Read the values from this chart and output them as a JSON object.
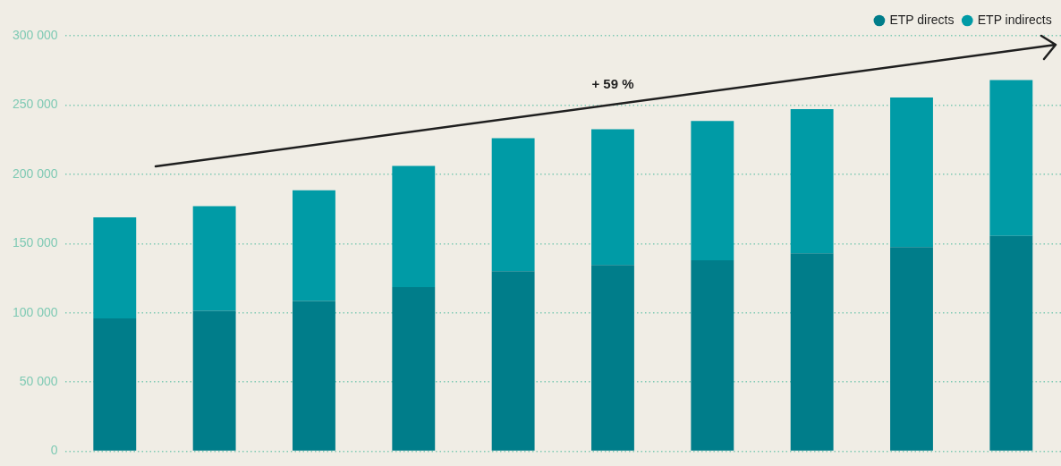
{
  "chart_data": {
    "type": "bar",
    "stacked": true,
    "categories": [
      null,
      null,
      null,
      null,
      null,
      null,
      null,
      null,
      null,
      null
    ],
    "series": [
      {
        "name": "ETP directs",
        "color": "#007d8a",
        "values": [
          96000,
          101500,
          108500,
          118500,
          130000,
          134500,
          138000,
          143000,
          147500,
          155500
        ]
      },
      {
        "name": "ETP indirects",
        "color": "#009ba6",
        "values": [
          73000,
          75500,
          80000,
          87500,
          96000,
          98000,
          100500,
          104000,
          108000,
          112500
        ]
      }
    ],
    "ylim": [
      0,
      300000
    ],
    "yticks": [
      {
        "value": 0,
        "label": "0"
      },
      {
        "value": 50000,
        "label": "50 000"
      },
      {
        "value": 100000,
        "label": "100 000"
      },
      {
        "value": 150000,
        "label": "150 000"
      },
      {
        "value": 200000,
        "label": "200 000"
      },
      {
        "value": 250000,
        "label": "250 000"
      },
      {
        "value": 300000,
        "label": "300 000"
      }
    ],
    "grid": "y",
    "legend": "top right",
    "tick_labels": "y",
    "annotations": [
      "+ 59 %"
    ]
  }
}
